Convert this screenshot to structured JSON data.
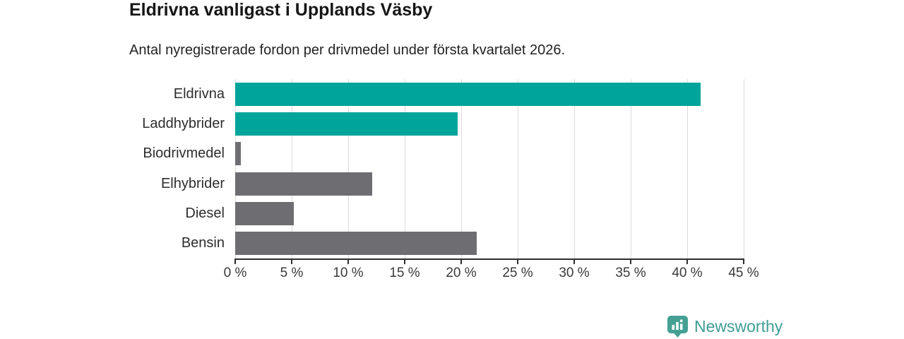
{
  "header": {
    "title": "Eldrivna vanligast i Upplands Väsby",
    "subtitle": "Antal nyregistrerade fordon per drivmedel under första kvartalet 2026."
  },
  "chart_data": {
    "type": "bar",
    "orientation": "horizontal",
    "title": "Eldrivna vanligast i Upplands Väsby",
    "subtitle": "Antal nyregistrerade fordon per drivmedel under första kvartalet 2026.",
    "categories": [
      "Eldrivna",
      "Laddhybrider",
      "Biodrivmedel",
      "Elhybrider",
      "Diesel",
      "Bensin"
    ],
    "values": [
      41.2,
      19.7,
      0.5,
      12.1,
      5.2,
      21.4
    ],
    "unit": "%",
    "bar_colors": [
      "#00a49a",
      "#00a49a",
      "#6e6e72",
      "#6e6e72",
      "#6e6e72",
      "#6e6e72"
    ],
    "xlim": [
      0,
      45
    ],
    "x_ticks": [
      0,
      5,
      10,
      15,
      20,
      25,
      30,
      35,
      40,
      45
    ],
    "x_tick_labels": [
      "0 %",
      "5 %",
      "10 %",
      "15 %",
      "20 %",
      "25 %",
      "30 %",
      "35 %",
      "40 %",
      "45 %"
    ],
    "grid": true,
    "legend": false
  },
  "branding": {
    "logo_text": "Newsworthy",
    "logo_color": "#3f9d94",
    "logo_icon": "speech-bubble-bar-chart",
    "logo_icon_color": "#45a094"
  },
  "colors": {
    "bar_teal": "#00a49a",
    "bar_gray": "#6e6e72",
    "gridline": "#dcdcdc",
    "axis": "#2f2f2f"
  }
}
